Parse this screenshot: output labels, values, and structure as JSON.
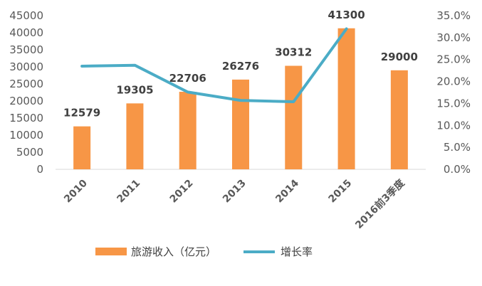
{
  "chart_data": {
    "type": "bar",
    "categories": [
      "2010",
      "2011",
      "2012",
      "2013",
      "2014",
      "2015",
      "2016前3季度"
    ],
    "series": [
      {
        "name": "旅游收入（亿元）",
        "type": "bar",
        "axis": "left",
        "color": "#F79646",
        "values": [
          12579,
          19305,
          22706,
          26276,
          30312,
          41300,
          29000
        ]
      },
      {
        "name": "增长率",
        "type": "line",
        "axis": "right",
        "color": "#4BACC6",
        "values": [
          0.235,
          0.237,
          0.176,
          0.157,
          0.154,
          0.32,
          null
        ]
      }
    ],
    "y_left": {
      "ylim": [
        0,
        45000
      ],
      "ticks": [
        "0",
        "5000",
        "10000",
        "15000",
        "20000",
        "25000",
        "30000",
        "35000",
        "40000",
        "45000"
      ]
    },
    "y_right": {
      "ylim": [
        0,
        0.35
      ],
      "ticks": [
        "0.0%",
        "5.0%",
        "10.0%",
        "15.0%",
        "20.0%",
        "25.0%",
        "30.0%",
        "35.0%"
      ]
    },
    "data_labels": [
      "12579",
      "19305",
      "22706",
      "26276",
      "30312",
      "41300",
      "29000"
    ],
    "grid": false,
    "legend_position": "bottom"
  }
}
